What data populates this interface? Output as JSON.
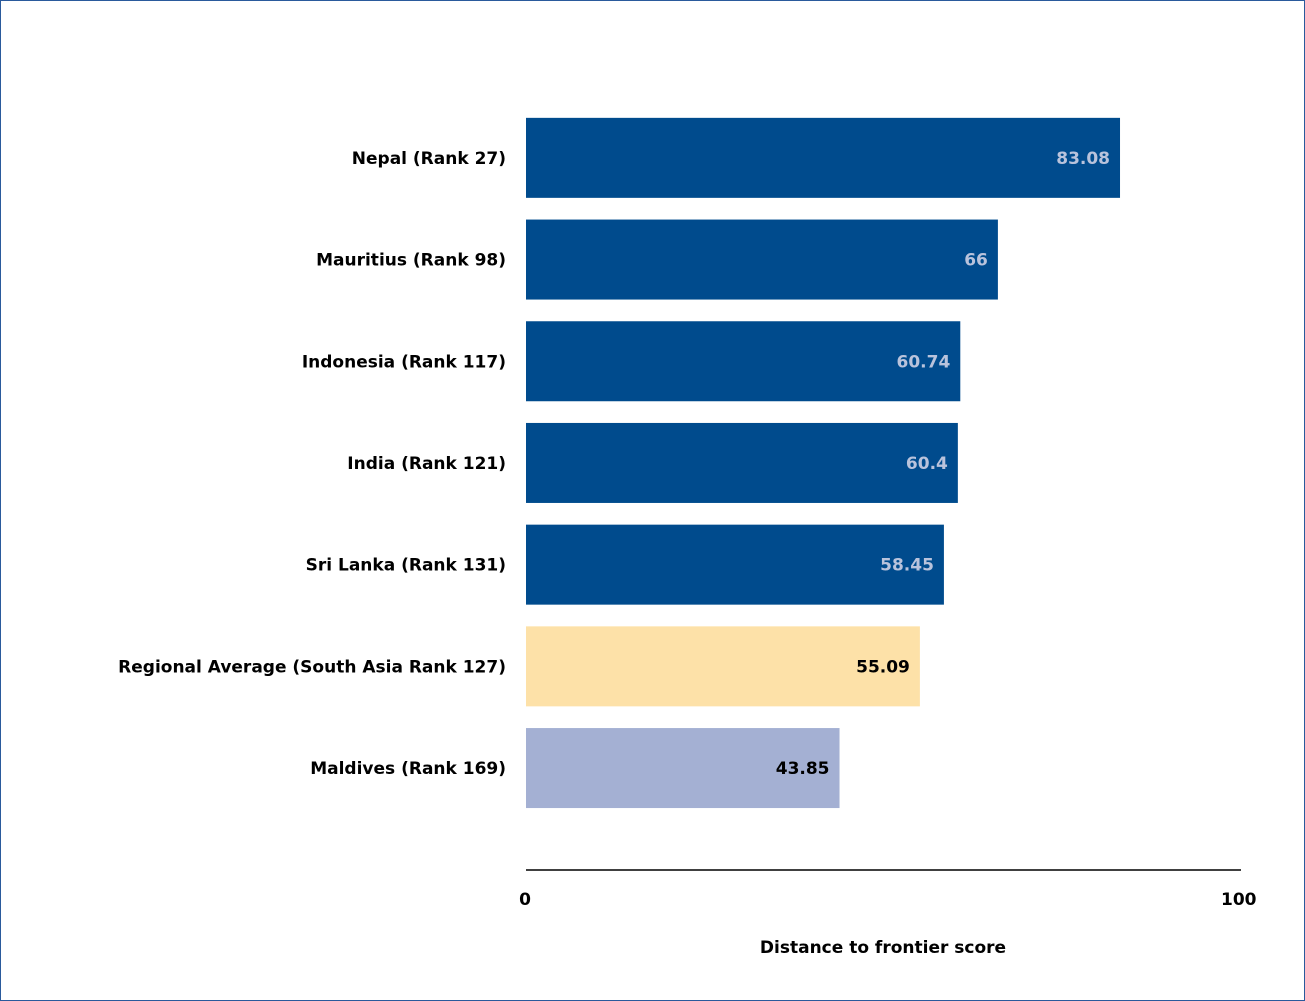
{
  "chart_data": {
    "type": "bar",
    "orientation": "horizontal",
    "x_label": "Distance to frontier score",
    "categories": [
      "Nepal (Rank 27)",
      "Mauritius (Rank 98)",
      "Indonesia (Rank 117)",
      "India (Rank 121)",
      "Sri Lanka (Rank 131)",
      "Regional Average (South Asia Rank 127)",
      "Maldives (Rank 169)"
    ],
    "values": [
      83.08,
      66,
      60.74,
      60.4,
      58.45,
      55.09,
      43.85
    ],
    "colors": [
      "#004b8d",
      "#004b8d",
      "#004b8d",
      "#004b8d",
      "#004b8d",
      "#fde1a8",
      "#a4b0d3"
    ],
    "value_label_colors": [
      "#b9c3dc",
      "#b9c3dc",
      "#b9c3dc",
      "#b9c3dc",
      "#b9c3dc",
      "#000000",
      "#000000"
    ],
    "xlim": [
      0,
      100
    ],
    "xticks": [
      0,
      100
    ],
    "grid": false
  }
}
